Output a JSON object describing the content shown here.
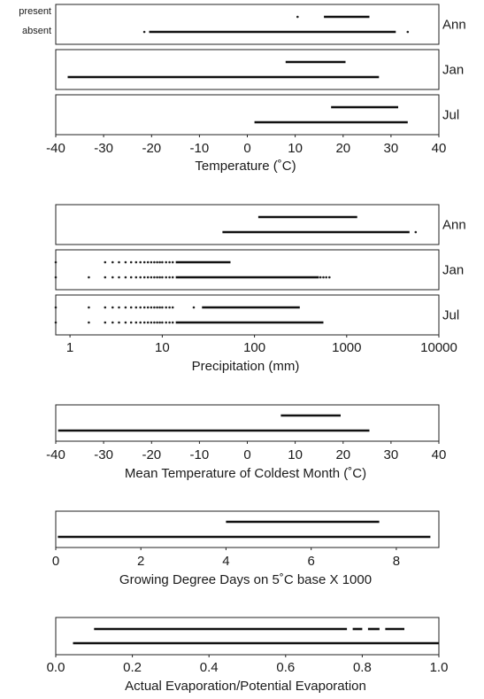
{
  "chart_data": [
    {
      "id": "temperature",
      "type": "range",
      "xlabel": "Temperature (˚C)",
      "xscale": "linear",
      "xlim": [
        -40,
        40
      ],
      "xticks": [
        -40,
        -30,
        -20,
        -10,
        0,
        10,
        20,
        30,
        40
      ],
      "xtick_labels": [
        "-40",
        "-30",
        "-20",
        "-10",
        "0",
        "10",
        "20",
        "30",
        "40"
      ],
      "legend": {
        "present": "present",
        "absent": "absent"
      },
      "panels": [
        {
          "label": "Ann",
          "present": {
            "segments": [
              [
                16,
                25.5
              ]
            ],
            "points": [
              10.5
            ]
          },
          "absent": {
            "segments": [
              [
                -20.5,
                31
              ]
            ],
            "points": [
              -21.5,
              33.5
            ]
          }
        },
        {
          "label": "Jan",
          "present": {
            "segments": [
              [
                8,
                20.5
              ]
            ],
            "points": []
          },
          "absent": {
            "segments": [
              [
                -37.5,
                27.5
              ]
            ],
            "points": []
          }
        },
        {
          "label": "Jul",
          "present": {
            "segments": [
              [
                17.5,
                31.5
              ]
            ],
            "points": []
          },
          "absent": {
            "segments": [
              [
                1.5,
                33.5
              ]
            ],
            "points": []
          }
        }
      ]
    },
    {
      "id": "precipitation",
      "type": "range",
      "xlabel": "Precipitation (mm)",
      "xscale": "log",
      "xlim": [
        0.7,
        10000
      ],
      "xticks": [
        1,
        10,
        100,
        1000,
        10000
      ],
      "xtick_labels": [
        "1",
        "10",
        "100",
        "1000",
        "10000"
      ],
      "panels": [
        {
          "label": "Ann",
          "present": {
            "segments": [
              [
                110,
                1300
              ]
            ],
            "points": []
          },
          "absent": {
            "segments": [
              [
                45,
                4800
              ]
            ],
            "points": [
              5600
            ]
          }
        },
        {
          "label": "Jan",
          "present": {
            "segments": [
              [
                14,
                55
              ]
            ],
            "points": [
              0.7,
              2.4,
              2.9,
              3.4,
              4,
              4.6,
              5.2,
              5.8,
              6.4,
              7,
              7.6,
              8.2,
              8.8,
              9.4,
              10,
              11,
              12,
              13
            ]
          },
          "absent": {
            "segments": [
              [
                14,
                500
              ]
            ],
            "points": [
              0.7,
              1.6,
              2.4,
              2.9,
              3.4,
              4,
              4.6,
              5.2,
              5.8,
              6.4,
              7,
              7.6,
              8.2,
              8.8,
              9.4,
              10,
              11,
              12,
              13,
              520,
              560,
              600,
              650
            ]
          }
        },
        {
          "label": "Jul",
          "present": {
            "segments": [
              [
                27,
                310
              ]
            ],
            "points": [
              0.7,
              1.6,
              2.4,
              2.9,
              3.4,
              4,
              4.6,
              5.2,
              5.8,
              6.4,
              7,
              7.6,
              8.2,
              8.8,
              9.4,
              10,
              11,
              12,
              13,
              22
            ]
          },
          "absent": {
            "segments": [
              [
                14,
                560
              ]
            ],
            "points": [
              0.7,
              1.6,
              2.4,
              2.9,
              3.4,
              4,
              4.6,
              5.2,
              5.8,
              6.4,
              7,
              7.6,
              8.2,
              8.8,
              9.4,
              10,
              11,
              12,
              13
            ]
          }
        }
      ]
    },
    {
      "id": "coldest-month",
      "type": "range",
      "xlabel": "Mean Temperature of Coldest Month (˚C)",
      "xscale": "linear",
      "xlim": [
        -40,
        40
      ],
      "xticks": [
        -40,
        -30,
        -20,
        -10,
        0,
        10,
        20,
        30,
        40
      ],
      "xtick_labels": [
        "-40",
        "-30",
        "-20",
        "-10",
        "0",
        "10",
        "20",
        "30",
        "40"
      ],
      "panels": [
        {
          "label": "",
          "present": {
            "segments": [
              [
                7,
                19.5
              ]
            ],
            "points": []
          },
          "absent": {
            "segments": [
              [
                -39.5,
                25.5
              ]
            ],
            "points": []
          }
        }
      ]
    },
    {
      "id": "growing-degree-days",
      "type": "range",
      "xlabel": "Growing Degree Days on 5˚C base X 1000",
      "xscale": "linear",
      "xlim": [
        0,
        9
      ],
      "xticks": [
        0,
        2,
        4,
        6,
        8
      ],
      "xtick_labels": [
        "0",
        "2",
        "4",
        "6",
        "8"
      ],
      "panels": [
        {
          "label": "",
          "present": {
            "segments": [
              [
                4,
                7.6
              ]
            ],
            "points": []
          },
          "absent": {
            "segments": [
              [
                0.05,
                8.8
              ]
            ],
            "points": []
          }
        }
      ]
    },
    {
      "id": "evaporation-ratio",
      "type": "range",
      "xlabel": "Actual Evaporation/Potential Evaporation",
      "xscale": "linear",
      "xlim": [
        0.0,
        1.0
      ],
      "xticks": [
        0.0,
        0.2,
        0.4,
        0.6,
        0.8,
        1.0
      ],
      "xtick_labels": [
        "0.0",
        "0.2",
        "0.4",
        "0.6",
        "0.8",
        "1.0"
      ],
      "panels": [
        {
          "label": "",
          "present": {
            "segments": [
              [
                0.1,
                0.76
              ],
              [
                0.775,
                0.8
              ],
              [
                0.815,
                0.845
              ],
              [
                0.86,
                0.91
              ]
            ],
            "points": []
          },
          "absent": {
            "segments": [
              [
                0.045,
                1.0
              ]
            ],
            "points": []
          }
        }
      ]
    }
  ]
}
